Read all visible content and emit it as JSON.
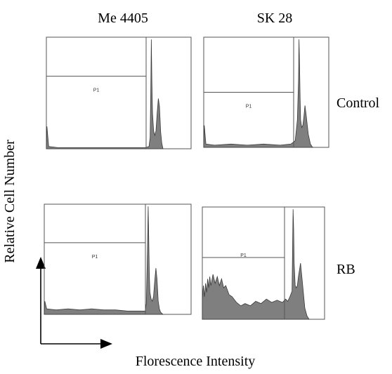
{
  "chart_data": {
    "type": "area",
    "columns": [
      "Me 4405",
      "SK 28"
    ],
    "rows": [
      "Control",
      "RB"
    ],
    "xlabel": "Florescence Intensity",
    "ylabel": "Relative Cell Number",
    "gate_label": "P1",
    "histogram_color": "#7f7f7f",
    "panels": [
      {
        "column": "Me 4405",
        "row": "Control",
        "gate_level": 0.65,
        "gate_position": 0.95,
        "x": [
          0,
          0.005,
          0.02,
          0.1,
          0.3,
          0.5,
          0.7,
          0.85,
          0.88,
          0.89,
          0.895,
          0.9,
          0.905,
          0.91,
          0.92,
          0.93,
          0.94,
          0.95,
          0.96,
          0.97,
          0.98,
          0.99,
          1.0
        ],
        "y": [
          0.02,
          0.2,
          0.02,
          0.01,
          0.01,
          0.01,
          0.01,
          0.01,
          0.02,
          0.1,
          0.5,
          0.98,
          0.6,
          0.32,
          0.16,
          0.12,
          0.16,
          0.32,
          0.45,
          0.38,
          0.15,
          0.05,
          0
        ]
      },
      {
        "column": "SK 28",
        "row": "Control",
        "gate_level": 0.5,
        "gate_position": 0.98,
        "x": [
          0,
          0.005,
          0.02,
          0.1,
          0.25,
          0.4,
          0.55,
          0.7,
          0.8,
          0.84,
          0.86,
          0.87,
          0.875,
          0.88,
          0.885,
          0.89,
          0.9,
          0.91,
          0.92,
          0.93,
          0.94,
          0.96,
          0.98,
          1.0
        ],
        "y": [
          0.02,
          0.2,
          0.03,
          0.02,
          0.03,
          0.02,
          0.03,
          0.02,
          0.03,
          0.06,
          0.25,
          0.6,
          0.98,
          0.75,
          0.45,
          0.25,
          0.18,
          0.2,
          0.28,
          0.38,
          0.3,
          0.12,
          0.03,
          0
        ]
      },
      {
        "column": "Me 4405",
        "row": "RB",
        "gate_level": 0.65,
        "gate_position": 0.95,
        "x": [
          0,
          0.005,
          0.02,
          0.1,
          0.2,
          0.3,
          0.4,
          0.5,
          0.6,
          0.7,
          0.8,
          0.85,
          0.86,
          0.87,
          0.875,
          0.88,
          0.885,
          0.89,
          0.9,
          0.91,
          0.92,
          0.93,
          0.94,
          0.95,
          0.96,
          0.97,
          0.98,
          1.0
        ],
        "y": [
          0.02,
          0.12,
          0.05,
          0.04,
          0.05,
          0.04,
          0.05,
          0.04,
          0.04,
          0.03,
          0.03,
          0.03,
          0.1,
          0.6,
          0.98,
          0.7,
          0.35,
          0.2,
          0.14,
          0.12,
          0.16,
          0.3,
          0.42,
          0.32,
          0.12,
          0.05,
          0.02,
          0
        ]
      },
      {
        "column": "SK 28",
        "row": "RB",
        "gate_level": 0.55,
        "gate_position": 0.95,
        "x": [
          0,
          0.01,
          0.02,
          0.03,
          0.04,
          0.05,
          0.06,
          0.07,
          0.08,
          0.1,
          0.12,
          0.14,
          0.16,
          0.18,
          0.2,
          0.22,
          0.25,
          0.28,
          0.32,
          0.36,
          0.4,
          0.45,
          0.5,
          0.55,
          0.6,
          0.65,
          0.7,
          0.75,
          0.78,
          0.8,
          0.82,
          0.84,
          0.845,
          0.85,
          0.855,
          0.86,
          0.87,
          0.88,
          0.89,
          0.9,
          0.92,
          0.94,
          0.96,
          0.98,
          1.0
        ],
        "y": [
          0.18,
          0.3,
          0.2,
          0.32,
          0.24,
          0.36,
          0.28,
          0.38,
          0.3,
          0.4,
          0.32,
          0.38,
          0.3,
          0.36,
          0.28,
          0.3,
          0.22,
          0.2,
          0.15,
          0.12,
          0.14,
          0.12,
          0.16,
          0.14,
          0.18,
          0.15,
          0.17,
          0.15,
          0.18,
          0.16,
          0.2,
          0.25,
          0.6,
          0.98,
          0.8,
          0.5,
          0.3,
          0.28,
          0.3,
          0.38,
          0.5,
          0.3,
          0.1,
          0.03,
          0
        ]
      }
    ]
  }
}
